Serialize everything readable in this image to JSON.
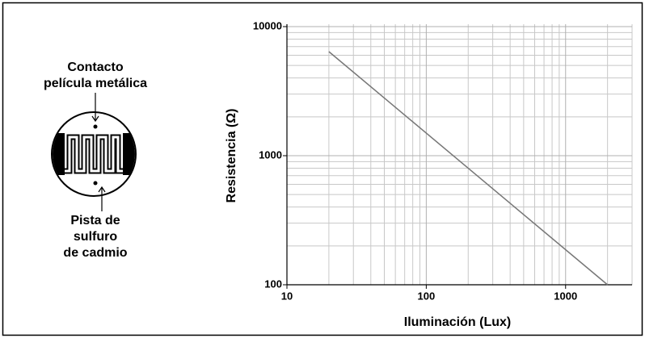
{
  "diagram": {
    "top_label": [
      "Contacto",
      "película metálica"
    ],
    "bottom_label": [
      "Pista de",
      "sulfuro",
      "de cadmio"
    ]
  },
  "chart_data": {
    "type": "line",
    "xlabel": "Iluminación (Lux)",
    "ylabel": "Resistencia (Ω)",
    "x": [
      20,
      2000
    ],
    "series": [
      {
        "color": "#777777",
        "values": [
          6400,
          100
        ]
      }
    ],
    "xscale": "log",
    "yscale": "log",
    "grid": true,
    "xlim": [
      10,
      3000
    ],
    "ylim": [
      100,
      10000
    ],
    "xticks": [
      10,
      100,
      1000
    ],
    "yticks": [
      100,
      1000,
      10000
    ]
  }
}
